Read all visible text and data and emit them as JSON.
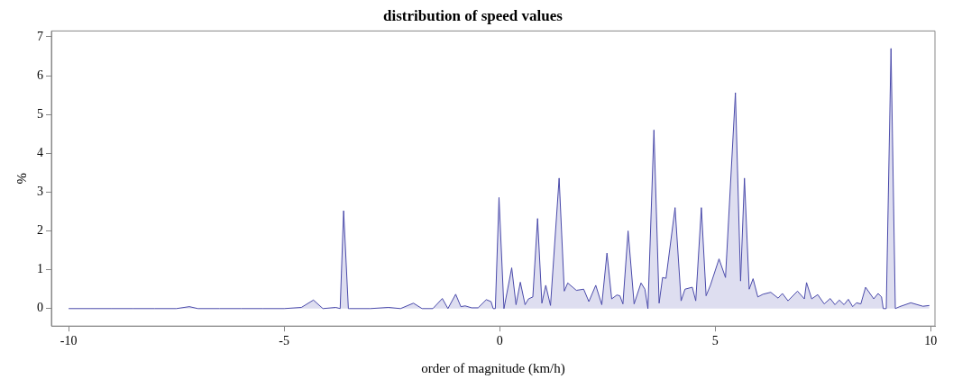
{
  "chart_data": {
    "type": "area",
    "title": "distribution of speed values",
    "xlabel": "order of magnitude (km/h)",
    "ylabel": "%",
    "xlim": [
      -10.4,
      10.1
    ],
    "xticks": [
      -10,
      -5,
      0,
      5,
      10
    ],
    "ylim": [
      -0.45,
      7.15
    ],
    "yticks": [
      0,
      1,
      2,
      3,
      4,
      5,
      6,
      7
    ],
    "grid": false,
    "legend": false,
    "series": [
      {
        "color": "#4a4aaa",
        "x": [
          -10,
          -9.5,
          -9,
          -8.5,
          -8,
          -7.5,
          -7.2,
          -7,
          -6.5,
          -6,
          -5.5,
          -5,
          -4.6,
          -4.32,
          -4.1,
          -3.8,
          -3.7,
          -3.62,
          -3.51,
          -3.49,
          -3,
          -2.58,
          -2.3,
          -2.0,
          -1.8,
          -1.55,
          -1.33,
          -1.2,
          -1.02,
          -0.9,
          -0.8,
          -0.65,
          -0.5,
          -0.31,
          -0.2,
          -0.15,
          -0.1,
          -0.015,
          0.1,
          0.28,
          0.38,
          0.48,
          0.59,
          0.67,
          0.77,
          0.88,
          0.98,
          1.07,
          1.18,
          1.38,
          1.5,
          1.58,
          1.78,
          1.95,
          2.07,
          2.23,
          2.37,
          2.49,
          2.6,
          2.72,
          2.79,
          2.86,
          2.98,
          3.12,
          3.28,
          3.37,
          3.44,
          3.58,
          3.7,
          3.78,
          3.86,
          4.07,
          4.21,
          4.3,
          4.47,
          4.55,
          4.68,
          4.79,
          4.89,
          5.09,
          5.24,
          5.47,
          5.59,
          5.68,
          5.79,
          5.88,
          5.99,
          6.11,
          6.29,
          6.46,
          6.56,
          6.69,
          6.91,
          7.07,
          7.12,
          7.24,
          7.38,
          7.53,
          7.67,
          7.78,
          7.88,
          7.99,
          8.09,
          8.19,
          8.28,
          8.38,
          8.49,
          8.68,
          8.78,
          8.86,
          8.9,
          8.97,
          9.08,
          9.18,
          9.28,
          9.54,
          9.82,
          9.97
        ],
        "values": [
          0,
          0,
          0,
          0,
          0,
          0,
          0.05,
          0,
          0,
          0,
          0,
          0,
          0.03,
          0.22,
          0,
          0.03,
          0,
          2.52,
          0,
          0,
          0,
          0.03,
          0,
          0.14,
          0,
          0,
          0.26,
          0,
          0.37,
          0.05,
          0.07,
          0.02,
          0.02,
          0.23,
          0.18,
          0,
          0,
          2.86,
          0,
          1.05,
          0.1,
          0.68,
          0.1,
          0.25,
          0.3,
          2.32,
          0.14,
          0.6,
          0.08,
          3.36,
          0.45,
          0.66,
          0.47,
          0.5,
          0.18,
          0.6,
          0.1,
          1.43,
          0.25,
          0.35,
          0.33,
          0.12,
          2.0,
          0.12,
          0.66,
          0.5,
          0,
          4.6,
          0.14,
          0.8,
          0.78,
          2.6,
          0.2,
          0.5,
          0.55,
          0.2,
          2.6,
          0.33,
          0.6,
          1.28,
          0.8,
          5.56,
          0.71,
          3.36,
          0.5,
          0.77,
          0.3,
          0.37,
          0.42,
          0.27,
          0.39,
          0.2,
          0.45,
          0.25,
          0.67,
          0.25,
          0.36,
          0.12,
          0.26,
          0.1,
          0.22,
          0.1,
          0.24,
          0.05,
          0.15,
          0.12,
          0.55,
          0.25,
          0.39,
          0.3,
          0,
          0,
          6.7,
          0,
          0.05,
          0.15,
          0.06,
          0.08
        ]
      }
    ]
  }
}
